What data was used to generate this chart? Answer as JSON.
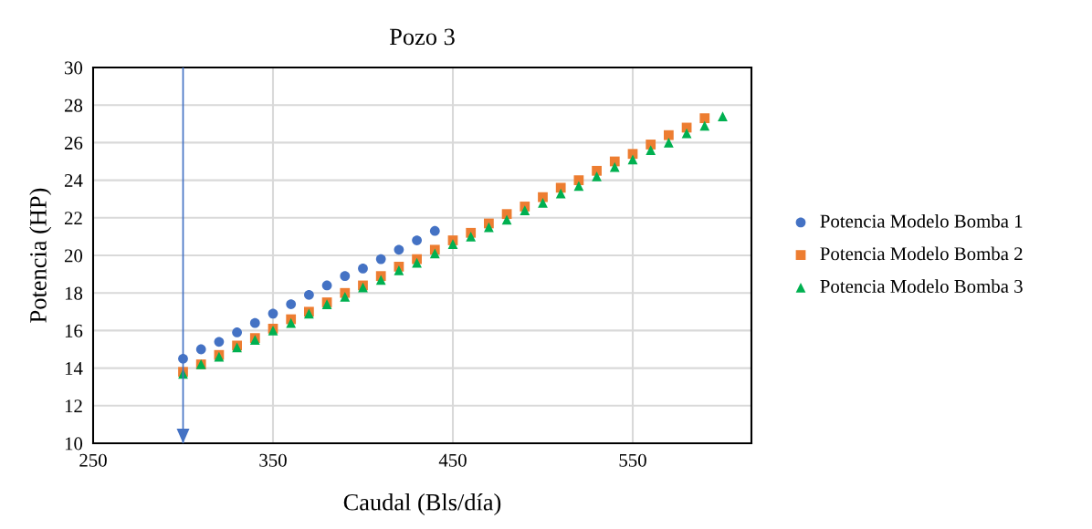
{
  "chart_data": {
    "type": "scatter",
    "title": "Pozo 3",
    "xlabel": "Caudal (Bls/día)",
    "ylabel": "Potencia (HP)",
    "xlim": [
      250,
      616
    ],
    "xticks": [
      250,
      350,
      450,
      550
    ],
    "ylim": [
      10,
      30
    ],
    "yticks": [
      10,
      12,
      14,
      16,
      18,
      20,
      22,
      24,
      26,
      28,
      30
    ],
    "grid": true,
    "legend": "right",
    "ref_lines": [
      {
        "axis": "x",
        "value": 300,
        "label": null,
        "color": "#4472c4"
      }
    ],
    "series": [
      {
        "name": "Potencia Modelo Bomba 1",
        "color": "#4472c4",
        "marker": "circle",
        "x": [
          300,
          310,
          320,
          330,
          340,
          350,
          360,
          370,
          380,
          390,
          400,
          410,
          420,
          430,
          440
        ],
        "values": [
          14.5,
          15.0,
          15.4,
          15.9,
          16.4,
          16.9,
          17.4,
          17.9,
          18.4,
          18.9,
          19.3,
          19.8,
          20.3,
          20.8,
          21.3
        ]
      },
      {
        "name": "Potencia Modelo Bomba 2",
        "color": "#ed7d31",
        "marker": "square",
        "x": [
          300,
          310,
          320,
          330,
          340,
          350,
          360,
          370,
          380,
          390,
          400,
          410,
          420,
          430,
          440,
          450,
          460,
          470,
          480,
          490,
          500,
          510,
          520,
          530,
          540,
          550,
          560,
          570,
          580,
          590
        ],
        "values": [
          13.8,
          14.2,
          14.7,
          15.2,
          15.6,
          16.1,
          16.6,
          17.0,
          17.5,
          18.0,
          18.4,
          18.9,
          19.4,
          19.8,
          20.3,
          20.8,
          21.2,
          21.7,
          22.2,
          22.6,
          23.1,
          23.6,
          24.0,
          24.5,
          25.0,
          25.4,
          25.9,
          26.4,
          26.8,
          27.3
        ]
      },
      {
        "name": "Potencia Modelo Bomba 3",
        "color": "#00b050",
        "marker": "triangle",
        "x": [
          300,
          310,
          320,
          330,
          340,
          350,
          360,
          370,
          380,
          390,
          400,
          410,
          420,
          430,
          440,
          450,
          460,
          470,
          480,
          490,
          500,
          510,
          520,
          530,
          540,
          550,
          560,
          570,
          580,
          590,
          600
        ],
        "values": [
          13.7,
          14.2,
          14.6,
          15.1,
          15.5,
          16.0,
          16.4,
          16.9,
          17.4,
          17.8,
          18.3,
          18.7,
          19.2,
          19.6,
          20.1,
          20.6,
          21.0,
          21.5,
          21.9,
          22.4,
          22.8,
          23.3,
          23.7,
          24.2,
          24.7,
          25.1,
          25.6,
          26.0,
          26.5,
          26.9,
          27.4
        ]
      }
    ]
  }
}
